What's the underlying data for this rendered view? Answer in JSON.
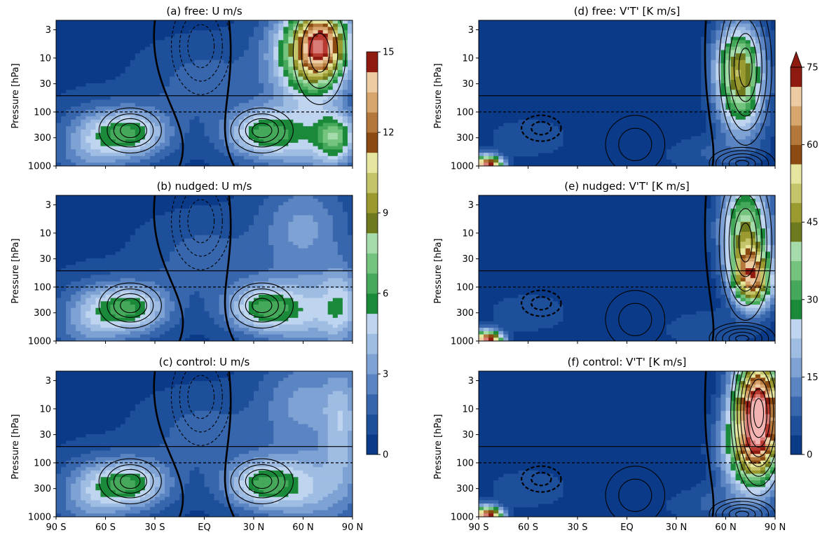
{
  "colors": {
    "blues": [
      "#0b3b88",
      "#1d4f9a",
      "#3766ad",
      "#5a85c2",
      "#7ea2d4",
      "#9fbde3",
      "#bfd4ef"
    ],
    "greens": [
      "#1a8a3a",
      "#45a85a",
      "#74c37e",
      "#a6dcab"
    ],
    "olives": [
      "#6f7a1e",
      "#9a9a30",
      "#c4c46a",
      "#e6e6a0"
    ],
    "browns": [
      "#8a4a12",
      "#b5783c",
      "#d7a66e",
      "#edcca4"
    ],
    "reds": [
      "#8e1a10",
      "#b83a30",
      "#d97c78",
      "#f2b4b2"
    ]
  },
  "chart_data": [
    {
      "id": "a",
      "type": "heatmap",
      "title": "(a) free: U m/s",
      "ylabel": "Pressure [hPa]",
      "xlabel": "",
      "x_ticks": [
        "90 S",
        "60 S",
        "30 S",
        "EQ",
        "30 N",
        "60 N",
        "90 N"
      ],
      "y_ticks": [
        "3",
        "10",
        "30",
        "100",
        "300",
        "1000"
      ],
      "y_scale": "log",
      "ylim": [
        1000,
        2
      ],
      "xlim": [
        -90,
        90
      ],
      "hlines": [
        {
          "p": 50,
          "style": "solid"
        },
        {
          "p": 100,
          "style": "dashed"
        }
      ]
    },
    {
      "id": "b",
      "type": "heatmap",
      "title": "(b) nudged: U m/s",
      "ylabel": "Pressure [hPa]",
      "xlabel": "",
      "x_ticks": [
        "90 S",
        "60 S",
        "30 S",
        "EQ",
        "30 N",
        "60 N",
        "90 N"
      ],
      "y_ticks": [
        "3",
        "10",
        "30",
        "100",
        "300",
        "1000"
      ],
      "y_scale": "log",
      "ylim": [
        1000,
        2
      ],
      "xlim": [
        -90,
        90
      ],
      "hlines": [
        {
          "p": 50,
          "style": "solid"
        },
        {
          "p": 100,
          "style": "dashed"
        }
      ]
    },
    {
      "id": "c",
      "type": "heatmap",
      "title": "(c) control: U m/s",
      "ylabel": "Pressure [hPa]",
      "xlabel": "",
      "x_ticks": [
        "90 S",
        "60 S",
        "30 S",
        "EQ",
        "30 N",
        "60 N",
        "90 N"
      ],
      "y_ticks": [
        "3",
        "10",
        "30",
        "100",
        "300",
        "1000"
      ],
      "y_scale": "log",
      "ylim": [
        1000,
        2
      ],
      "xlim": [
        -90,
        90
      ],
      "hlines": [
        {
          "p": 50,
          "style": "solid"
        },
        {
          "p": 100,
          "style": "dashed"
        }
      ]
    },
    {
      "id": "d",
      "type": "heatmap",
      "title": "(d) free: V'T' [K m/s]",
      "ylabel": "Pressure [hPa]",
      "xlabel": "",
      "x_ticks": [
        "90 S",
        "60 S",
        "30 S",
        "EQ",
        "30 N",
        "60 N",
        "90 N"
      ],
      "y_ticks": [
        "3",
        "10",
        "30",
        "100",
        "300",
        "1000"
      ],
      "y_scale": "log",
      "ylim": [
        1000,
        2
      ],
      "xlim": [
        -90,
        90
      ],
      "hlines": [
        {
          "p": 50,
          "style": "solid"
        },
        {
          "p": 100,
          "style": "dashed"
        }
      ]
    },
    {
      "id": "e",
      "type": "heatmap",
      "title": "(e) nudged: V'T' [K m/s]",
      "ylabel": "Pressure [hPa]",
      "xlabel": "",
      "x_ticks": [
        "90 S",
        "60 S",
        "30 S",
        "EQ",
        "30 N",
        "60 N",
        "90 N"
      ],
      "y_ticks": [
        "3",
        "10",
        "30",
        "100",
        "300",
        "1000"
      ],
      "y_scale": "log",
      "ylim": [
        1000,
        2
      ],
      "xlim": [
        -90,
        90
      ],
      "hlines": [
        {
          "p": 50,
          "style": "solid"
        },
        {
          "p": 100,
          "style": "dashed"
        }
      ]
    },
    {
      "id": "f",
      "type": "heatmap",
      "title": "(f) control: V'T' [K m/s]",
      "ylabel": "Pressure [hPa]",
      "xlabel": "",
      "x_ticks": [
        "90 S",
        "60 S",
        "30 S",
        "EQ",
        "30 N",
        "60 N",
        "90 N"
      ],
      "y_ticks": [
        "3",
        "10",
        "30",
        "100",
        "300",
        "1000"
      ],
      "y_scale": "log",
      "ylim": [
        1000,
        2
      ],
      "xlim": [
        -90,
        90
      ],
      "hlines": [
        {
          "p": 50,
          "style": "solid"
        },
        {
          "p": 100,
          "style": "dashed"
        }
      ]
    }
  ],
  "colorbars": [
    {
      "id": "u",
      "min": 0,
      "max": 15,
      "levels": 20,
      "ticks": [
        "0",
        "3",
        "6",
        "9",
        "12",
        "15"
      ],
      "extend": "none"
    },
    {
      "id": "vt",
      "min": 0,
      "max": 75,
      "levels": 20,
      "ticks": [
        "0",
        "15",
        "30",
        "45",
        "60",
        "75"
      ],
      "extend": "max"
    }
  ]
}
